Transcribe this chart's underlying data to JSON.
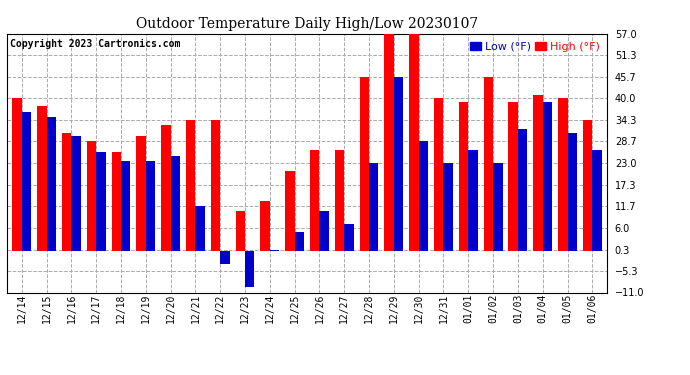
{
  "title": "Outdoor Temperature Daily High/Low 20230107",
  "copyright": "Copyright 2023 Cartronics.com",
  "legend_low": "Low",
  "legend_high": "High",
  "legend_unit": "(°F)",
  "low_color": "#0000cc",
  "high_color": "#ff0000",
  "background_color": "#ffffff",
  "plot_bg_color": "#ffffff",
  "grid_color": "#aaaaaa",
  "ylim": [
    -11.0,
    57.0
  ],
  "yticks": [
    -11.0,
    -5.3,
    0.3,
    6.0,
    11.7,
    17.3,
    23.0,
    28.7,
    34.3,
    40.0,
    45.7,
    51.3,
    57.0
  ],
  "dates": [
    "12/14",
    "12/15",
    "12/16",
    "12/17",
    "12/18",
    "12/19",
    "12/20",
    "12/21",
    "12/22",
    "12/23",
    "12/24",
    "12/25",
    "12/26",
    "12/27",
    "12/28",
    "12/29",
    "12/30",
    "12/31",
    "01/01",
    "01/02",
    "01/03",
    "01/04",
    "01/05",
    "01/06"
  ],
  "highs": [
    40.0,
    38.0,
    31.0,
    28.7,
    26.0,
    30.0,
    33.0,
    34.3,
    34.3,
    10.5,
    13.0,
    21.0,
    26.5,
    26.5,
    45.7,
    57.0,
    57.0,
    40.0,
    39.0,
    45.7,
    39.0,
    41.0,
    40.0,
    34.3
  ],
  "lows": [
    36.5,
    35.0,
    30.0,
    26.0,
    23.5,
    23.5,
    25.0,
    11.7,
    -3.5,
    -9.5,
    0.3,
    5.0,
    10.5,
    7.0,
    23.0,
    45.7,
    28.7,
    23.0,
    26.5,
    23.0,
    32.0,
    39.0,
    31.0,
    26.5
  ],
  "bar_width": 0.38,
  "title_fontsize": 10,
  "tick_fontsize": 7,
  "copyright_fontsize": 7
}
